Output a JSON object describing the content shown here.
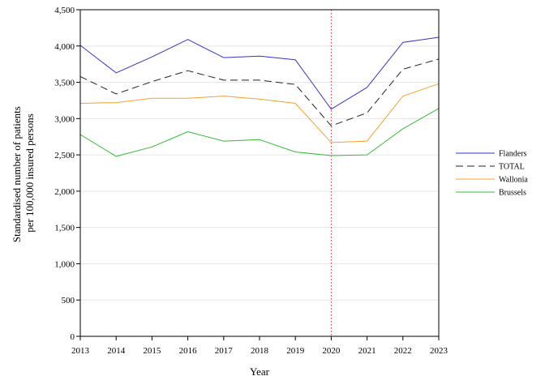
{
  "chart_data": {
    "type": "line",
    "xlabel": "Year",
    "ylabel_lines": [
      "Standardised number of patients",
      "per 100,000 insured persons"
    ],
    "x": [
      2013,
      2014,
      2015,
      2016,
      2017,
      2018,
      2019,
      2020,
      2021,
      2022,
      2023
    ],
    "x_tick_labels": [
      "2013",
      "2014",
      "2015",
      "2016",
      "2017",
      "2018",
      "2019",
      "2020",
      "2021",
      "2022",
      "2023"
    ],
    "y_ticks": [
      0,
      500,
      1000,
      1500,
      2000,
      2500,
      3000,
      3500,
      4000,
      4500
    ],
    "y_tick_labels": [
      "0",
      "500",
      "1,000",
      "1,500",
      "2,000",
      "2,500",
      "3,000",
      "3,500",
      "4,000",
      "4,500"
    ],
    "xlim": [
      2013,
      2023
    ],
    "ylim": [
      0,
      4500
    ],
    "grid": "horizontal",
    "legend_position": "right",
    "reference_line": {
      "x": 2020,
      "color": "#cc3344",
      "style": "dotted"
    },
    "series": [
      {
        "name": "Flanders",
        "color": "#3333cc",
        "dash": "solid",
        "values": [
          4010,
          3630,
          3850,
          4090,
          3840,
          3860,
          3810,
          3130,
          3430,
          4050,
          4120
        ]
      },
      {
        "name": "TOTAL",
        "color": "#222222",
        "dash": "dashed",
        "values": [
          3580,
          3340,
          3510,
          3660,
          3530,
          3530,
          3470,
          2900,
          3080,
          3680,
          3820
        ]
      },
      {
        "name": "Wallonia",
        "color": "#f5a030",
        "dash": "solid",
        "values": [
          3210,
          3220,
          3280,
          3280,
          3310,
          3270,
          3210,
          2670,
          2690,
          3310,
          3480
        ]
      },
      {
        "name": "Brussels",
        "color": "#33bb33",
        "dash": "solid",
        "values": [
          2780,
          2480,
          2610,
          2820,
          2690,
          2710,
          2540,
          2490,
          2500,
          2860,
          3140
        ]
      }
    ]
  }
}
